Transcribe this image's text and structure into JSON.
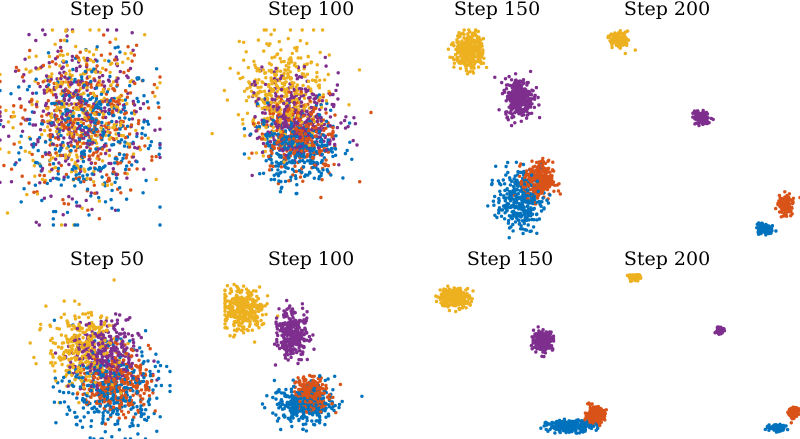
{
  "chart_data": [
    {
      "type": "scatter",
      "title": "Step 50",
      "series": [
        {
          "color": "#0072BD",
          "blobs": [
            {
              "cx": 0.55,
              "cy": 0.47,
              "sx": 0.21,
              "sy": 0.19,
              "n": 330
            }
          ]
        },
        {
          "color": "#EDB120",
          "blobs": [
            {
              "cx": 0.5,
              "cy": 0.57,
              "sx": 0.2,
              "sy": 0.2,
              "n": 330
            }
          ]
        },
        {
          "color": "#D95319",
          "blobs": [
            {
              "cx": 0.52,
              "cy": 0.53,
              "sx": 0.2,
              "sy": 0.19,
              "n": 330
            }
          ]
        },
        {
          "color": "#7E2F8E",
          "blobs": [
            {
              "cx": 0.5,
              "cy": 0.55,
              "sx": 0.2,
              "sy": 0.19,
              "n": 330
            }
          ]
        }
      ]
    },
    {
      "type": "scatter",
      "title": "Step 100",
      "series": [
        {
          "color": "#0072BD",
          "blobs": [
            {
              "cx": 0.55,
              "cy": 0.4,
              "sx": 0.12,
              "sy": 0.09,
              "n": 360
            }
          ]
        },
        {
          "color": "#EDB120",
          "blobs": [
            {
              "cx": 0.45,
              "cy": 0.69,
              "sx": 0.12,
              "sy": 0.13,
              "n": 360
            }
          ]
        },
        {
          "color": "#D95319",
          "blobs": [
            {
              "cx": 0.56,
              "cy": 0.45,
              "sx": 0.11,
              "sy": 0.1,
              "n": 330
            }
          ]
        },
        {
          "color": "#7E2F8E",
          "blobs": [
            {
              "cx": 0.55,
              "cy": 0.56,
              "sx": 0.12,
              "sy": 0.11,
              "n": 330
            }
          ]
        }
      ]
    },
    {
      "type": "scatter",
      "title": "Step 150",
      "series": [
        {
          "color": "#0072BD",
          "blobs": [
            {
              "cx": 0.62,
              "cy": 0.19,
              "sx": 0.07,
              "sy": 0.07,
              "n": 320
            }
          ]
        },
        {
          "color": "#EDB120",
          "blobs": [
            {
              "cx": 0.31,
              "cy": 0.9,
              "sx": 0.045,
              "sy": 0.045,
              "n": 320
            }
          ]
        },
        {
          "color": "#D95319",
          "blobs": [
            {
              "cx": 0.74,
              "cy": 0.28,
              "sx": 0.045,
              "sy": 0.045,
              "n": 300
            }
          ]
        },
        {
          "color": "#7E2F8E",
          "blobs": [
            {
              "cx": 0.62,
              "cy": 0.68,
              "sx": 0.045,
              "sy": 0.045,
              "n": 320
            }
          ]
        }
      ]
    },
    {
      "type": "scatter",
      "title": "Step 200",
      "series": [
        {
          "color": "#0072BD",
          "blobs": [
            {
              "cx": 0.82,
              "cy": 0.05,
              "sx": 0.018,
              "sy": 0.013,
              "n": 110
            }
          ]
        },
        {
          "color": "#EDB120",
          "blobs": [
            {
              "cx": 0.1,
              "cy": 0.95,
              "sx": 0.024,
              "sy": 0.02,
              "n": 110
            }
          ]
        },
        {
          "color": "#D95319",
          "blobs": [
            {
              "cx": 0.93,
              "cy": 0.17,
              "sx": 0.02,
              "sy": 0.025,
              "n": 110
            }
          ]
        },
        {
          "color": "#7E2F8E",
          "blobs": [
            {
              "cx": 0.51,
              "cy": 0.58,
              "sx": 0.02,
              "sy": 0.016,
              "n": 110
            }
          ]
        }
      ]
    },
    {
      "type": "scatter",
      "title": "Step 50",
      "series": [
        {
          "color": "#0072BD",
          "blobs": [
            {
              "cx": 0.65,
              "cy": 0.3,
              "sx": 0.14,
              "sy": 0.14,
              "n": 340
            }
          ]
        },
        {
          "color": "#EDB120",
          "blobs": [
            {
              "cx": 0.48,
              "cy": 0.56,
              "sx": 0.1,
              "sy": 0.12,
              "n": 330
            }
          ]
        },
        {
          "color": "#D95319",
          "blobs": [
            {
              "cx": 0.7,
              "cy": 0.35,
              "sx": 0.09,
              "sy": 0.1,
              "n": 300
            }
          ]
        },
        {
          "color": "#7E2F8E",
          "blobs": [
            {
              "cx": 0.62,
              "cy": 0.52,
              "sx": 0.1,
              "sy": 0.11,
              "n": 310
            }
          ]
        }
      ]
    },
    {
      "type": "scatter",
      "title": "Step 100",
      "series": [
        {
          "color": "#0072BD",
          "blobs": [
            {
              "cx": 0.53,
              "cy": 0.22,
              "sx": 0.1,
              "sy": 0.06,
              "n": 340
            }
          ]
        },
        {
          "color": "#EDB120",
          "blobs": [
            {
              "cx": 0.12,
              "cy": 0.81,
              "sx": 0.07,
              "sy": 0.065,
              "n": 330
            }
          ]
        },
        {
          "color": "#D95319",
          "blobs": [
            {
              "cx": 0.58,
              "cy": 0.28,
              "sx": 0.05,
              "sy": 0.05,
              "n": 300
            }
          ]
        },
        {
          "color": "#7E2F8E",
          "blobs": [
            {
              "cx": 0.45,
              "cy": 0.66,
              "sx": 0.05,
              "sy": 0.07,
              "n": 320
            }
          ]
        }
      ]
    },
    {
      "type": "scatter",
      "title": "Step 150",
      "series": [
        {
          "color": "#0072BD",
          "blobs": [
            {
              "cx": 0.79,
              "cy": 0.08,
              "sx": 0.06,
              "sy": 0.018,
              "n": 250
            }
          ]
        },
        {
          "color": "#EDB120",
          "blobs": [
            {
              "cx": 0.18,
              "cy": 0.89,
              "sx": 0.04,
              "sy": 0.03,
              "n": 250
            }
          ]
        },
        {
          "color": "#D95319",
          "blobs": [
            {
              "cx": 0.92,
              "cy": 0.15,
              "sx": 0.025,
              "sy": 0.025,
              "n": 240
            }
          ]
        },
        {
          "color": "#7E2F8E",
          "blobs": [
            {
              "cx": 0.65,
              "cy": 0.62,
              "sx": 0.025,
              "sy": 0.03,
              "n": 240
            }
          ]
        }
      ]
    },
    {
      "type": "scatter",
      "title": "Step 200",
      "series": [
        {
          "color": "#0072BD",
          "blobs": [
            {
              "cx": 0.88,
              "cy": 0.07,
              "sx": 0.02,
              "sy": 0.01,
              "n": 80
            }
          ]
        },
        {
          "color": "#EDB120",
          "blobs": [
            {
              "cx": 0.18,
              "cy": 0.99,
              "sx": 0.015,
              "sy": 0.015,
              "n": 70
            }
          ]
        },
        {
          "color": "#D95319",
          "blobs": [
            {
              "cx": 0.97,
              "cy": 0.16,
              "sx": 0.012,
              "sy": 0.018,
              "n": 70
            }
          ]
        },
        {
          "color": "#7E2F8E",
          "blobs": [
            {
              "cx": 0.6,
              "cy": 0.66,
              "sx": 0.01,
              "sy": 0.01,
              "n": 60
            }
          ]
        }
      ]
    }
  ]
}
